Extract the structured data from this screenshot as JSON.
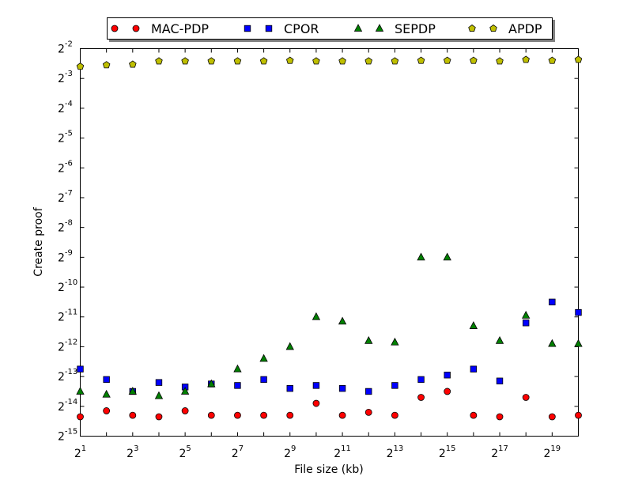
{
  "chart_data": {
    "type": "scatter",
    "title": "",
    "xlabel": "File size (kb)",
    "ylabel": "Create proof",
    "x_scale": "log2",
    "y_scale": "log2",
    "xlim_log2": [
      1,
      20
    ],
    "ylim_log2": [
      -15,
      -2
    ],
    "x_ticks": [
      {
        "base": "2",
        "exp": "1",
        "log2": 1
      },
      {
        "base": "2",
        "exp": "3",
        "log2": 3
      },
      {
        "base": "2",
        "exp": "5",
        "log2": 5
      },
      {
        "base": "2",
        "exp": "7",
        "log2": 7
      },
      {
        "base": "2",
        "exp": "9",
        "log2": 9
      },
      {
        "base": "2",
        "exp": "11",
        "log2": 11
      },
      {
        "base": "2",
        "exp": "13",
        "log2": 13
      },
      {
        "base": "2",
        "exp": "15",
        "log2": 15
      },
      {
        "base": "2",
        "exp": "17",
        "log2": 17
      },
      {
        "base": "2",
        "exp": "19",
        "log2": 19
      }
    ],
    "y_ticks": [
      {
        "base": "2",
        "exp": "-2",
        "log2": -2
      },
      {
        "base": "2",
        "exp": "-3",
        "log2": -3
      },
      {
        "base": "2",
        "exp": "-4",
        "log2": -4
      },
      {
        "base": "2",
        "exp": "-5",
        "log2": -5
      },
      {
        "base": "2",
        "exp": "-6",
        "log2": -6
      },
      {
        "base": "2",
        "exp": "-7",
        "log2": -7
      },
      {
        "base": "2",
        "exp": "-8",
        "log2": -8
      },
      {
        "base": "2",
        "exp": "-9",
        "log2": -9
      },
      {
        "base": "2",
        "exp": "-10",
        "log2": -10
      },
      {
        "base": "2",
        "exp": "-11",
        "log2": -11
      },
      {
        "base": "2",
        "exp": "-12",
        "log2": -12
      },
      {
        "base": "2",
        "exp": "-13",
        "log2": -13
      },
      {
        "base": "2",
        "exp": "-14",
        "log2": -14
      },
      {
        "base": "2",
        "exp": "-15",
        "log2": -15
      }
    ],
    "x_log2": [
      1,
      2,
      3,
      4,
      5,
      6,
      7,
      8,
      9,
      10,
      11,
      12,
      13,
      14,
      15,
      16,
      17,
      18,
      19,
      20
    ],
    "grid": false,
    "legend_position": "top-center",
    "series": [
      {
        "name": "MAC-PDP",
        "marker": "circle",
        "color": "#ff0000",
        "y_log2": [
          -14.35,
          -14.15,
          -14.3,
          -14.35,
          -14.15,
          -14.3,
          -14.3,
          -14.3,
          -14.3,
          -13.9,
          -14.3,
          -14.2,
          -14.3,
          -13.7,
          -13.5,
          -14.3,
          -14.35,
          -13.7,
          -14.35,
          -14.3
        ]
      },
      {
        "name": "CPOR",
        "marker": "square",
        "color": "#0000ff",
        "y_log2": [
          -12.75,
          -13.1,
          -13.5,
          -13.2,
          -13.35,
          -13.25,
          -13.3,
          -13.1,
          -13.4,
          -13.3,
          -13.4,
          -13.5,
          -13.3,
          -13.1,
          -12.95,
          -12.75,
          -13.15,
          -11.2,
          -10.5,
          -10.85
        ]
      },
      {
        "name": "SEPDP",
        "marker": "triangle",
        "color": "#008000",
        "y_log2": [
          -13.5,
          -13.6,
          -13.5,
          -13.65,
          -13.5,
          -13.25,
          -12.75,
          -12.4,
          -12,
          -11,
          -11.15,
          -11.8,
          -11.85,
          -9,
          -9,
          -11.3,
          -11.8,
          -10.95,
          -11.9,
          -11.9
        ]
      },
      {
        "name": "APDP",
        "marker": "pentagon",
        "color": "#bfbf00",
        "y_log2": [
          -2.6,
          -2.55,
          -2.53,
          -2.42,
          -2.42,
          -2.42,
          -2.42,
          -2.42,
          -2.4,
          -2.42,
          -2.42,
          -2.42,
          -2.42,
          -2.4,
          -2.4,
          -2.4,
          -2.42,
          -2.37,
          -2.4,
          -2.37
        ]
      }
    ]
  }
}
